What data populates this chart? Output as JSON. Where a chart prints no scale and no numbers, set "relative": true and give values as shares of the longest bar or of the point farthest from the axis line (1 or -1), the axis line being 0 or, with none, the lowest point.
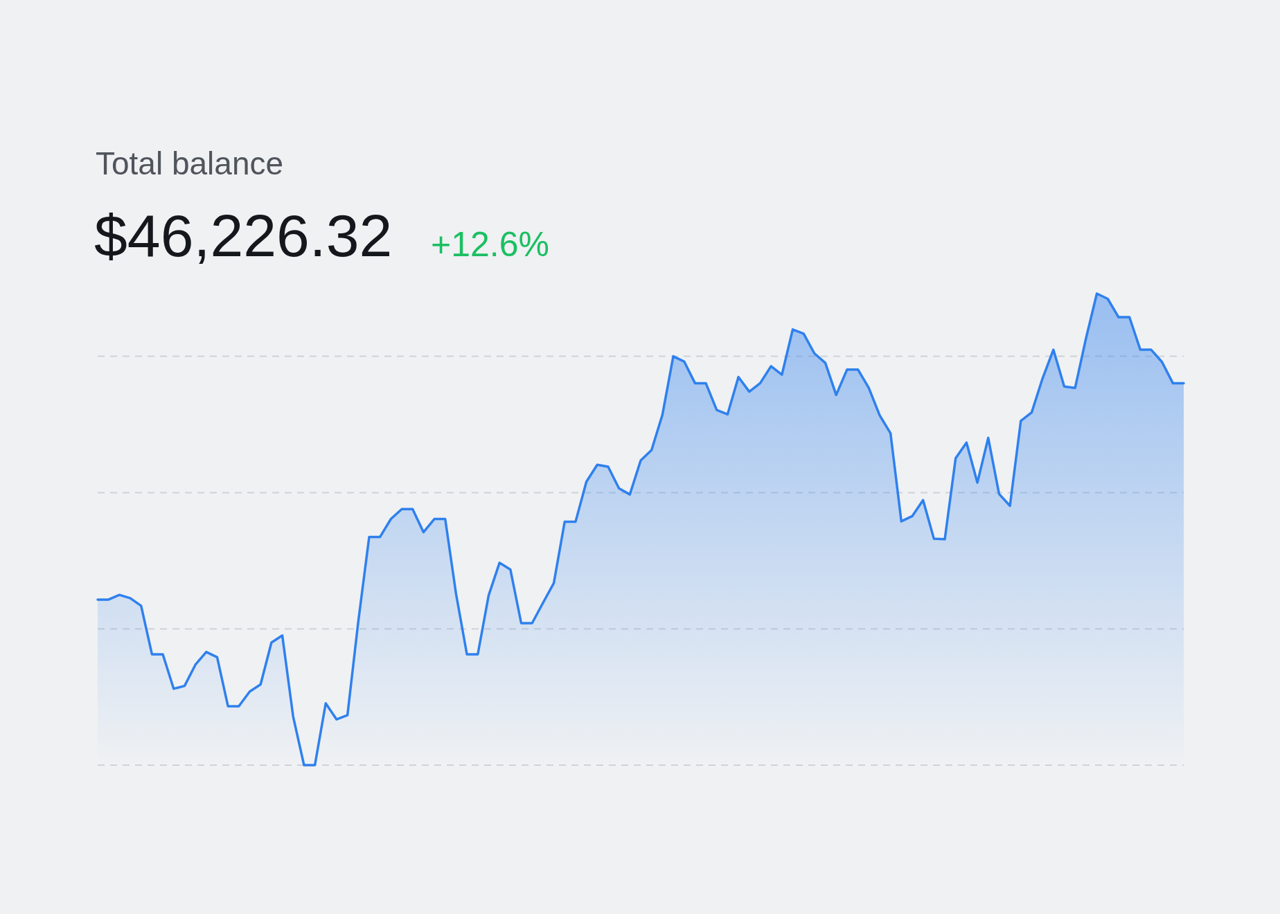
{
  "chart_data": {
    "type": "area",
    "title": "Total balance",
    "subtitle": "$46,226.32",
    "annotations": [
      "+12.6%"
    ],
    "relative": true,
    "grid": true,
    "categories": [
      null,
      null,
      null,
      null,
      null,
      null,
      null,
      null,
      null,
      null,
      null,
      null,
      null,
      null,
      null,
      null,
      null,
      null,
      null,
      null,
      null,
      null,
      null,
      null,
      null,
      null,
      null,
      null,
      null,
      null,
      null,
      null,
      null,
      null,
      null,
      null,
      null,
      null,
      null,
      null,
      null,
      null,
      null,
      null,
      null,
      null,
      null,
      null,
      null,
      null,
      null,
      null,
      null,
      null,
      null,
      null,
      null,
      null,
      null,
      null,
      null,
      null,
      null,
      null,
      null,
      null,
      null,
      null,
      null,
      null,
      null,
      null,
      null,
      null,
      null,
      null,
      null,
      null,
      null,
      null,
      null,
      null,
      null,
      null,
      null,
      null,
      null,
      null,
      null,
      null,
      null,
      null,
      null,
      null,
      null,
      null,
      null,
      null,
      null,
      null,
      null
    ],
    "series": [
      {
        "color": "#2f80ed",
        "values": [
          0.351,
          0.351,
          0.361,
          0.354,
          0.338,
          0.235,
          0.235,
          0.162,
          0.168,
          0.213,
          0.24,
          0.229,
          0.125,
          0.125,
          0.156,
          0.171,
          0.26,
          0.275,
          0.103,
          0,
          0,
          0.131,
          0.097,
          0.106,
          0.305,
          0.484,
          0.484,
          0.522,
          0.543,
          0.543,
          0.494,
          0.522,
          0.522,
          0.363,
          0.235,
          0.235,
          0.36,
          0.429,
          0.415,
          0.301,
          0.301,
          0.344,
          0.386,
          0.516,
          0.516,
          0.601,
          0.637,
          0.633,
          0.587,
          0.574,
          0.646,
          0.668,
          0.743,
          0.867,
          0.856,
          0.81,
          0.81,
          0.753,
          0.744,
          0.823,
          0.792,
          0.81,
          0.846,
          0.828,
          0.924,
          0.915,
          0.873,
          0.853,
          0.785,
          0.839,
          0.839,
          0.8,
          0.742,
          0.704,
          0.517,
          0.528,
          0.562,
          0.48,
          0.479,
          0.651,
          0.684,
          0.599,
          0.694,
          0.575,
          0.55,
          0.73,
          0.748,
          0.82,
          0.881,
          0.803,
          0.8,
          0.905,
          1,
          0.989,
          0.95,
          0.95,
          0.881,
          0.881,
          0.855,
          0.81,
          0.81
        ]
      }
    ]
  }
}
